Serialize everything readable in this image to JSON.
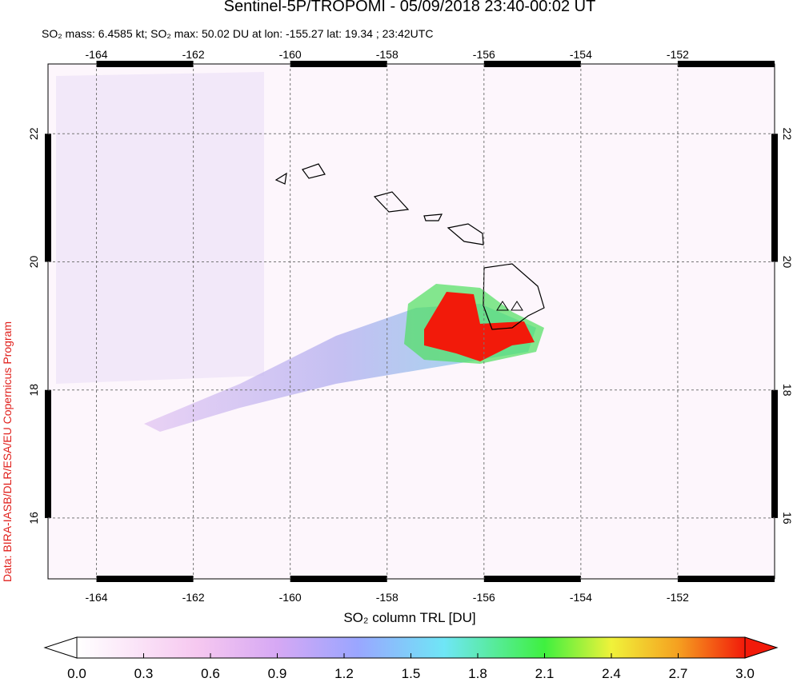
{
  "title": "Sentinel-5P/TROPOMI - 05/09/2018 23:40-00:02 UT",
  "subtitle": "SO₂ mass: 6.4585 kt; SO₂ max: 50.02 DU at lon: -155.27 lat: 19.34 ; 23:42UTC",
  "credit": "Data: BIRA-IASB/DLR/ESA/EU Copernicus Program",
  "map": {
    "xlim": [
      -165,
      -150
    ],
    "ylim": [
      15.05,
      23.09
    ],
    "xticks": [
      -164,
      -162,
      -160,
      -158,
      -156,
      -154,
      -152
    ],
    "yticks": [
      16,
      18,
      20,
      22
    ],
    "grid": true
  },
  "colorbar": {
    "label": "SO₂ column TRL [DU]",
    "lim": [
      0,
      3
    ],
    "ticks": [
      {
        "value": 0,
        "label": "0.0"
      },
      {
        "value": 0.3,
        "label": "0.3"
      },
      {
        "value": 0.6,
        "label": "0.6"
      },
      {
        "value": 0.9,
        "label": "0.9"
      },
      {
        "value": 1.2,
        "label": "1.2"
      },
      {
        "value": 1.5,
        "label": "1.5"
      },
      {
        "value": 1.8,
        "label": "1.8"
      },
      {
        "value": 2.1,
        "label": "2.1"
      },
      {
        "value": 2.4,
        "label": "2.4"
      },
      {
        "value": 2.7,
        "label": "2.7"
      },
      {
        "value": 3.0,
        "label": "3.0"
      }
    ]
  }
}
